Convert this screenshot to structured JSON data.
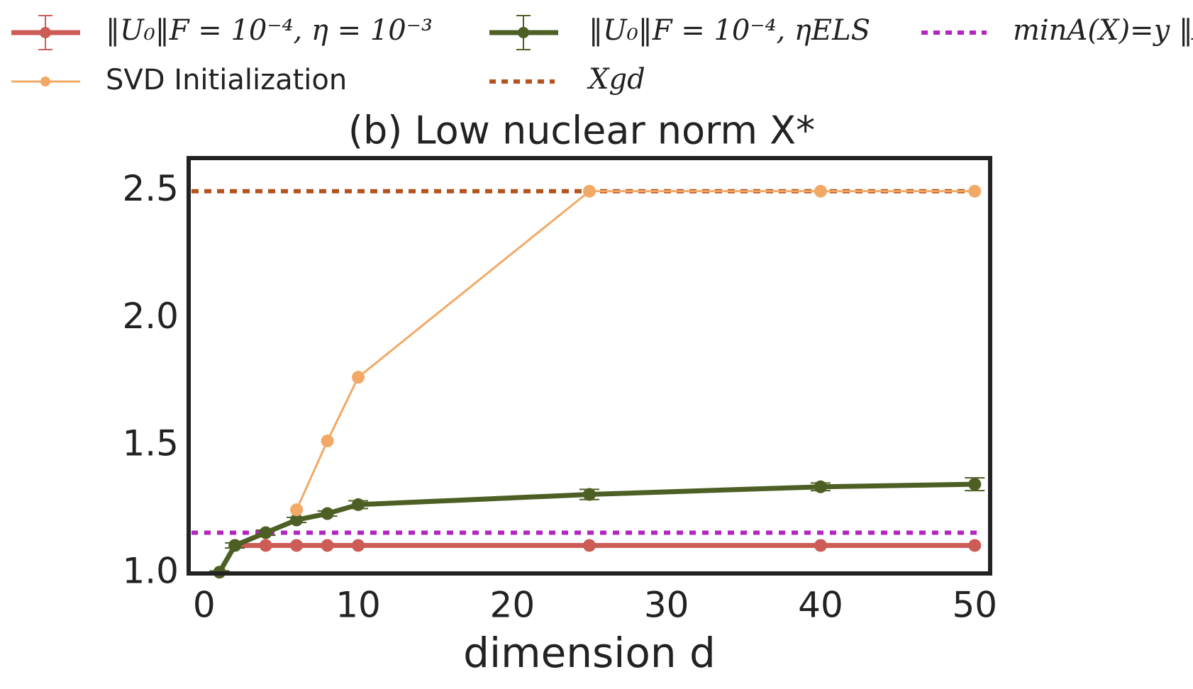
{
  "chart_data": {
    "type": "line",
    "title": "(b) Low nuclear norm X*",
    "x_label": "dimension d",
    "xlim": [
      -1,
      51
    ],
    "xticks": [
      0,
      10,
      20,
      30,
      40,
      50
    ],
    "ylim": [
      1.0,
      2.63
    ],
    "yticks": [
      {
        "value": 1.0,
        "label": "1.0"
      },
      1.5,
      {
        "value": 2.0,
        "label": "2.0"
      },
      2.5
    ],
    "series": [
      {
        "name": "‖U₀‖F = 10⁻⁴, η = 10⁻³",
        "color": "#cd5c57",
        "width": 7,
        "x": [
          2,
          4,
          6,
          8,
          10,
          25,
          40,
          50
        ],
        "values": [
          1.11,
          1.11,
          1.11,
          1.11,
          1.11,
          1.11,
          1.11,
          1.11
        ]
      },
      {
        "name": "‖U₀‖F = 10⁻⁴, ηELS",
        "color": "#4e5f25",
        "width": 7,
        "x": [
          1,
          2,
          4,
          6,
          8,
          10,
          25,
          40,
          50
        ],
        "values": [
          1.005,
          1.11,
          1.16,
          1.21,
          1.235,
          1.27,
          1.31,
          1.34,
          1.35
        ],
        "errors": [
          0.005,
          0.01,
          0.01,
          0.01,
          0.01,
          0.015,
          0.02,
          0.015,
          0.025
        ]
      },
      {
        "name": "SVD Initialization",
        "color": "#f2a966",
        "width": 3,
        "x": [
          6,
          8,
          10,
          25,
          40,
          50
        ],
        "values": [
          1.25,
          1.52,
          1.77,
          2.5,
          2.5,
          2.5
        ]
      }
    ],
    "hlines": [
      {
        "name": "Xgd",
        "color": "#b5531e",
        "value": 2.5
      },
      {
        "name": "minA(X)=y ‖X‖∗",
        "color": "#b325c0",
        "value": 1.16
      }
    ]
  }
}
